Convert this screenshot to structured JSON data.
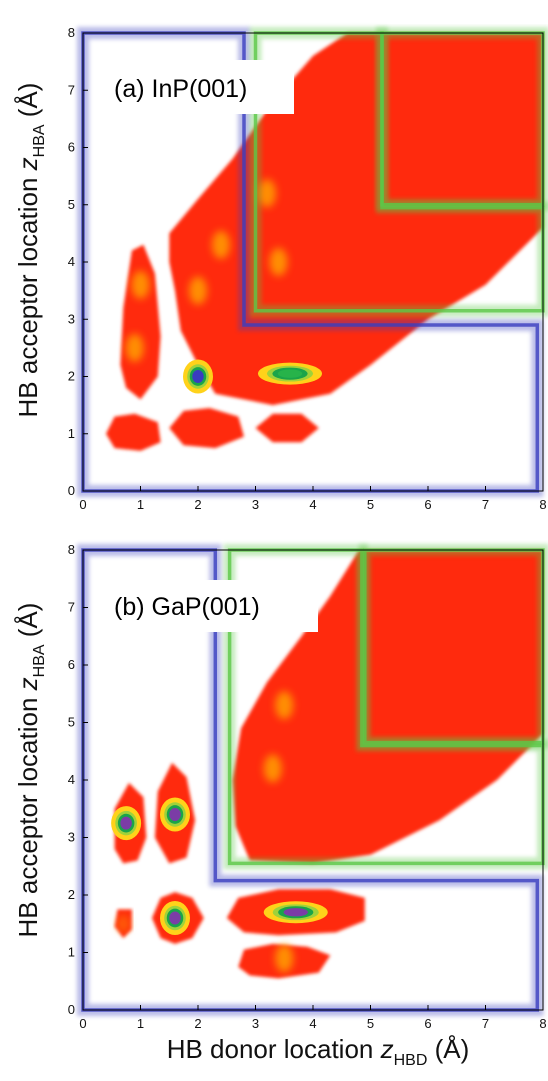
{
  "figure": {
    "panels": [
      {
        "label": "(a) InP(001)"
      },
      {
        "label": "(b) GaP(001)"
      }
    ],
    "ylabel_main": "HB acceptor location ",
    "ylabel_var": "z",
    "ylabel_sub": "HBA",
    "ylabel_unit": " (Å)",
    "xlabel_main": "HB donor location ",
    "xlabel_var": "z",
    "xlabel_sub": "HBD",
    "xlabel_unit": " (Å)"
  },
  "colors": {
    "density_high": "#ff2a10",
    "density_mid": "#ffb000",
    "density_peak_green": "#27b34a",
    "density_peak_blue": "#3a3cc0",
    "density_peak_violet": "#7b3ca6",
    "region_blue": "#3b3fbf",
    "region_green": "#5bc847"
  },
  "chart_data": [
    {
      "type": "heatmap",
      "title": "(a) InP(001)",
      "xlabel": "",
      "ylabel": "HB acceptor location z_HBA (Å)",
      "xlim": [
        0,
        8
      ],
      "ylim": [
        0,
        8
      ],
      "xticks": [
        0,
        1,
        2,
        3,
        4,
        5,
        6,
        7,
        8
      ],
      "yticks": [
        0,
        1,
        2,
        3,
        4,
        5,
        6,
        7,
        8
      ],
      "grid": false,
      "density_polygons": [
        {
          "level": "high",
          "points": [
            [
              1.5,
              4.5
            ],
            [
              2.0,
              5.1
            ],
            [
              2.6,
              5.8
            ],
            [
              3.3,
              6.8
            ],
            [
              4.0,
              7.6
            ],
            [
              4.6,
              8.0
            ],
            [
              8.0,
              8.0
            ],
            [
              8.0,
              4.6
            ],
            [
              7.0,
              3.6
            ],
            [
              6.0,
              3.0
            ],
            [
              5.0,
              2.2
            ],
            [
              4.3,
              1.7
            ],
            [
              3.3,
              1.5
            ],
            [
              2.3,
              1.7
            ],
            [
              2.0,
              2.2
            ],
            [
              1.7,
              2.8
            ],
            [
              1.6,
              3.5
            ],
            [
              1.5,
              4.0
            ]
          ]
        },
        {
          "level": "high",
          "points": [
            [
              0.65,
              2.2
            ],
            [
              0.7,
              3.2
            ],
            [
              0.85,
              4.2
            ],
            [
              1.05,
              4.3
            ],
            [
              1.25,
              3.8
            ],
            [
              1.35,
              2.7
            ],
            [
              1.3,
              2.0
            ],
            [
              1.0,
              1.6
            ],
            [
              0.75,
              1.8
            ]
          ]
        },
        {
          "level": "high",
          "points": [
            [
              0.4,
              1.0
            ],
            [
              0.55,
              1.3
            ],
            [
              0.9,
              1.35
            ],
            [
              1.3,
              1.2
            ],
            [
              1.35,
              0.85
            ],
            [
              1.0,
              0.7
            ],
            [
              0.55,
              0.75
            ]
          ]
        },
        {
          "level": "high",
          "points": [
            [
              1.5,
              1.1
            ],
            [
              1.75,
              1.4
            ],
            [
              2.2,
              1.45
            ],
            [
              2.7,
              1.3
            ],
            [
              2.8,
              0.95
            ],
            [
              2.3,
              0.75
            ],
            [
              1.75,
              0.8
            ]
          ]
        },
        {
          "level": "high",
          "points": [
            [
              3.0,
              1.1
            ],
            [
              3.3,
              1.35
            ],
            [
              3.8,
              1.35
            ],
            [
              4.1,
              1.1
            ],
            [
              3.8,
              0.85
            ],
            [
              3.3,
              0.85
            ]
          ]
        }
      ],
      "peaks": [
        {
          "x": 1.0,
          "y": 3.6,
          "level": "mid"
        },
        {
          "x": 0.9,
          "y": 2.5,
          "level": "mid"
        },
        {
          "x": 2.0,
          "y": 3.5,
          "level": "mid"
        },
        {
          "x": 2.4,
          "y": 4.3,
          "level": "mid"
        },
        {
          "x": 2.0,
          "y": 2.0,
          "level": "peak_blue"
        },
        {
          "x": 3.6,
          "y": 2.05,
          "level": "peak_green"
        },
        {
          "x": 3.4,
          "y": 4.0,
          "level": "mid"
        },
        {
          "x": 3.2,
          "y": 5.2,
          "level": "mid"
        }
      ],
      "regions": [
        {
          "color": "blue",
          "points": [
            [
              0,
              0
            ],
            [
              0,
              8
            ],
            [
              2.8,
              8
            ],
            [
              2.8,
              2.9
            ],
            [
              7.9,
              2.9
            ],
            [
              7.9,
              0
            ]
          ]
        },
        {
          "color": "green",
          "points": [
            [
              3.0,
              3.15
            ],
            [
              3.0,
              8
            ],
            [
              5.2,
              8
            ],
            [
              5.2,
              4.95
            ],
            [
              8,
              4.95
            ],
            [
              8,
              3.15
            ]
          ]
        },
        {
          "color": "green",
          "points": [
            [
              5.2,
              5.0
            ],
            [
              5.2,
              8
            ],
            [
              8,
              8
            ],
            [
              8,
              5.0
            ]
          ]
        }
      ]
    },
    {
      "type": "heatmap",
      "title": "(b) GaP(001)",
      "xlabel": "HB donor location z_HBD (Å)",
      "ylabel": "HB acceptor location z_HBA (Å)",
      "xlim": [
        0,
        8
      ],
      "ylim": [
        0,
        8
      ],
      "xticks": [
        0,
        1,
        2,
        3,
        4,
        5,
        6,
        7,
        8
      ],
      "yticks": [
        0,
        1,
        2,
        3,
        4,
        5,
        6,
        7,
        8
      ],
      "grid": false,
      "density_polygons": [
        {
          "level": "high",
          "points": [
            [
              2.9,
              2.6
            ],
            [
              2.65,
              3.2
            ],
            [
              2.6,
              4.0
            ],
            [
              2.75,
              4.9
            ],
            [
              3.2,
              5.7
            ],
            [
              3.8,
              6.5
            ],
            [
              4.3,
              7.2
            ],
            [
              4.8,
              8.0
            ],
            [
              8.0,
              8.0
            ],
            [
              8.0,
              4.8
            ],
            [
              7.2,
              4.0
            ],
            [
              6.2,
              3.3
            ],
            [
              5.0,
              2.7
            ],
            [
              4.0,
              2.55
            ]
          ]
        },
        {
          "level": "high",
          "points": [
            [
              0.55,
              2.8
            ],
            [
              0.55,
              3.5
            ],
            [
              0.8,
              3.95
            ],
            [
              1.05,
              3.7
            ],
            [
              1.1,
              3.0
            ],
            [
              0.95,
              2.6
            ],
            [
              0.7,
              2.55
            ]
          ]
        },
        {
          "level": "high",
          "points": [
            [
              1.25,
              3.0
            ],
            [
              1.3,
              3.8
            ],
            [
              1.55,
              4.3
            ],
            [
              1.8,
              4.05
            ],
            [
              1.95,
              3.3
            ],
            [
              1.8,
              2.65
            ],
            [
              1.5,
              2.55
            ]
          ]
        },
        {
          "level": "high",
          "points": [
            [
              0.55,
              1.45
            ],
            [
              0.6,
              1.75
            ],
            [
              0.85,
              1.75
            ],
            [
              0.85,
              1.4
            ],
            [
              0.7,
              1.25
            ]
          ]
        },
        {
          "level": "high",
          "points": [
            [
              1.2,
              1.6
            ],
            [
              1.35,
              1.95
            ],
            [
              1.6,
              2.05
            ],
            [
              1.9,
              1.95
            ],
            [
              2.1,
              1.6
            ],
            [
              1.9,
              1.25
            ],
            [
              1.6,
              1.15
            ],
            [
              1.35,
              1.25
            ]
          ]
        },
        {
          "level": "high",
          "points": [
            [
              2.5,
              1.6
            ],
            [
              2.7,
              1.95
            ],
            [
              3.4,
              2.1
            ],
            [
              4.3,
              2.1
            ],
            [
              4.9,
              1.95
            ],
            [
              4.9,
              1.55
            ],
            [
              4.4,
              1.35
            ],
            [
              3.4,
              1.3
            ],
            [
              2.8,
              1.35
            ]
          ]
        },
        {
          "level": "high",
          "points": [
            [
              2.7,
              0.75
            ],
            [
              2.8,
              1.05
            ],
            [
              3.3,
              1.15
            ],
            [
              3.9,
              1.1
            ],
            [
              4.3,
              0.95
            ],
            [
              4.1,
              0.65
            ],
            [
              3.4,
              0.55
            ],
            [
              2.9,
              0.6
            ]
          ]
        }
      ],
      "peaks": [
        {
          "x": 0.75,
          "y": 3.25,
          "level": "peak_violet"
        },
        {
          "x": 1.6,
          "y": 3.4,
          "level": "peak_violet"
        },
        {
          "x": 1.6,
          "y": 1.6,
          "level": "peak_violet"
        },
        {
          "x": 3.7,
          "y": 1.7,
          "level": "peak_violet"
        },
        {
          "x": 3.5,
          "y": 0.9,
          "level": "mid"
        },
        {
          "x": 3.5,
          "y": 5.3,
          "level": "mid"
        },
        {
          "x": 3.3,
          "y": 4.2,
          "level": "mid"
        },
        {
          "x": 0.7,
          "y": 1.5,
          "level": "high"
        }
      ],
      "regions": [
        {
          "color": "blue",
          "points": [
            [
              0,
              0
            ],
            [
              0,
              8
            ],
            [
              2.3,
              8
            ],
            [
              2.3,
              2.25
            ],
            [
              7.9,
              2.25
            ],
            [
              7.9,
              0
            ]
          ]
        },
        {
          "color": "green",
          "points": [
            [
              2.55,
              2.55
            ],
            [
              2.55,
              8
            ],
            [
              4.85,
              8
            ],
            [
              4.85,
              4.6
            ],
            [
              8,
              4.6
            ],
            [
              8,
              2.55
            ]
          ]
        },
        {
          "color": "green",
          "points": [
            [
              4.9,
              4.65
            ],
            [
              4.9,
              8
            ],
            [
              8,
              8
            ],
            [
              8,
              4.65
            ]
          ]
        }
      ]
    }
  ]
}
